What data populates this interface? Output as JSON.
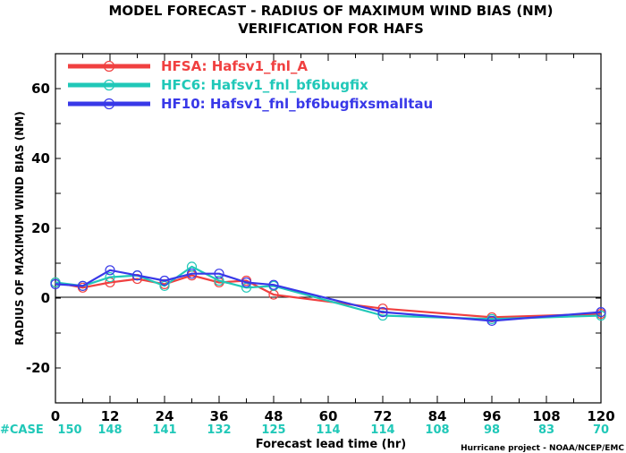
{
  "chart_data": {
    "type": "line",
    "title": "MODEL FORECAST - RADIUS OF MAXIMUM WIND BIAS (NM)",
    "subtitle": "VERIFICATION FOR HAFS",
    "xlabel": "Forecast lead time (hr)",
    "ylabel": "RADIUS OF MAXIMUM WIND BIAS (NM)",
    "xlim": [
      0,
      120
    ],
    "ylim": [
      -30,
      70
    ],
    "x_ticks": [
      "0",
      "12",
      "24",
      "36",
      "48",
      "60",
      "72",
      "84",
      "96",
      "108",
      "120"
    ],
    "y_ticks": [
      "-20",
      "0",
      "20",
      "40",
      "60"
    ],
    "zero_line": true,
    "grid": false,
    "legend_position": "top-left",
    "series": [
      {
        "name": "HFSA: Hafsv1_fnl_A",
        "color": "#f04040",
        "x": [
          0,
          6,
          12,
          18,
          24,
          30,
          36,
          42,
          48,
          72,
          96,
          120
        ],
        "y": [
          4.5,
          3.0,
          4.5,
          5.5,
          4.0,
          6.5,
          4.5,
          5.0,
          1.0,
          -3.0,
          -5.5,
          -4.5
        ]
      },
      {
        "name": "HFC6: Hafsv1_fnl_bf6bugfix",
        "color": "#20c8b8",
        "x": [
          0,
          6,
          12,
          18,
          24,
          30,
          36,
          42,
          48,
          72,
          96,
          120
        ],
        "y": [
          4.5,
          3.5,
          6.0,
          6.5,
          3.5,
          9.0,
          5.0,
          3.0,
          3.5,
          -5.0,
          -6.0,
          -5.0
        ]
      },
      {
        "name": "HF10: Hafsv1_fnl_bf6bugfixsmalltau",
        "color": "#3838e8",
        "x": [
          0,
          6,
          12,
          18,
          24,
          30,
          36,
          42,
          48,
          72,
          96,
          120
        ],
        "y": [
          4.0,
          3.5,
          8.0,
          6.5,
          5.0,
          7.0,
          7.0,
          4.5,
          3.8,
          -4.0,
          -6.5,
          -4.0
        ]
      }
    ],
    "case_label": "#CASE",
    "case_color": "#20c8b8",
    "cases": [
      {
        "x": 0,
        "n": "150"
      },
      {
        "x": 12,
        "n": "148"
      },
      {
        "x": 24,
        "n": "141"
      },
      {
        "x": 36,
        "n": "132"
      },
      {
        "x": 48,
        "n": "125"
      },
      {
        "x": 60,
        "n": "114"
      },
      {
        "x": 72,
        "n": "114"
      },
      {
        "x": 84,
        "n": "108"
      },
      {
        "x": 96,
        "n": "98"
      },
      {
        "x": 108,
        "n": "83"
      },
      {
        "x": 120,
        "n": "70"
      }
    ]
  },
  "credit": "Hurricane project - NOAA/NCEP/EMC"
}
